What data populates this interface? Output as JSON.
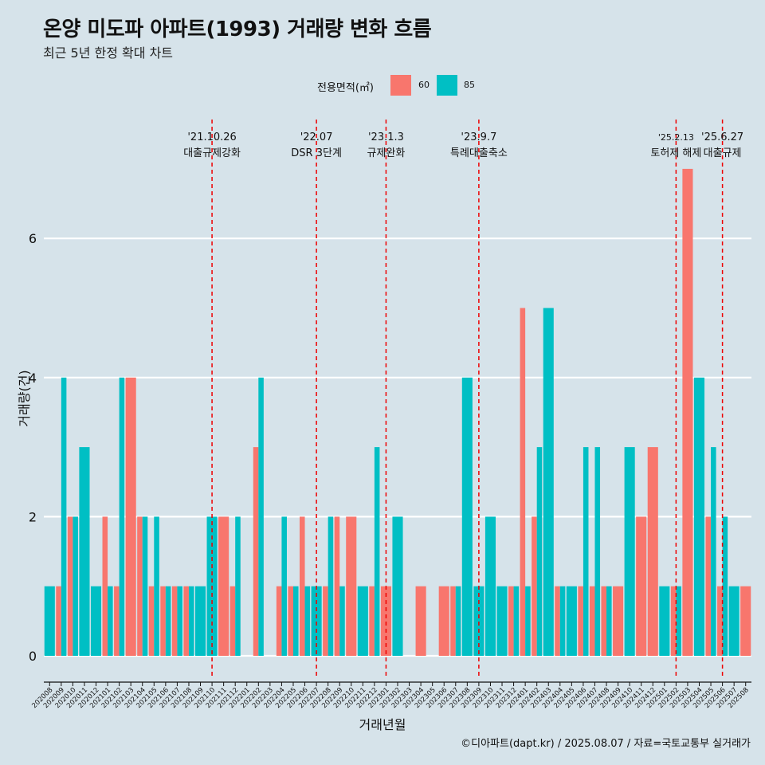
{
  "title": "온양 미도파 아파트(1993) 거래량 변화 흐름",
  "subtitle": "최근 5년 한정 확대 차트",
  "legend": {
    "title": "전용면적(㎡)",
    "items": [
      {
        "label": "60",
        "color": "#f8766d"
      },
      {
        "label": "85",
        "color": "#00bfc4"
      }
    ]
  },
  "caption": "©디아파트(dapt.kr) / 2025.08.07 / 자료=국토교통부 실거래가",
  "chart_data": {
    "type": "bar",
    "xlabel": "거래년월",
    "ylabel": "거래량(건)",
    "ylim": [
      0,
      7
    ],
    "y_ticks": [
      0,
      2,
      4,
      6
    ],
    "grid": true,
    "legend_position": "top",
    "categories": [
      "202008",
      "202009",
      "202010",
      "202011",
      "202012",
      "202101",
      "202102",
      "202103",
      "202104",
      "202105",
      "202106",
      "202107",
      "202108",
      "202109",
      "202110",
      "202111",
      "202112",
      "202201",
      "202202",
      "202203",
      "202204",
      "202205",
      "202206",
      "202207",
      "202208",
      "202209",
      "202210",
      "202211",
      "202212",
      "202301",
      "202302",
      "202303",
      "202304",
      "202305",
      "202306",
      "202307",
      "202308",
      "202309",
      "202310",
      "202311",
      "202312",
      "202401",
      "202402",
      "202403",
      "202404",
      "202405",
      "202406",
      "202407",
      "202408",
      "202409",
      "202410",
      "202411",
      "202412",
      "202501",
      "202502",
      "202503",
      "202504",
      "202505",
      "202506",
      "202507",
      "202508"
    ],
    "series": [
      {
        "name": "60",
        "color": "#f8766d",
        "values": [
          0,
          1,
          2,
          0,
          0,
          2,
          1,
          4,
          2,
          1,
          1,
          1,
          1,
          0,
          0,
          2,
          1,
          0,
          3,
          0,
          1,
          1,
          2,
          0,
          1,
          2,
          2,
          0,
          1,
          1,
          0,
          0,
          1,
          0,
          1,
          1,
          0,
          0,
          0,
          0,
          1,
          5,
          2,
          0,
          1,
          0,
          1,
          1,
          1,
          1,
          0,
          2,
          3,
          0,
          1,
          7,
          0,
          2,
          1,
          0,
          1
        ]
      },
      {
        "name": "85",
        "color": "#00bfc4",
        "values": [
          1,
          4,
          2,
          3,
          1,
          1,
          4,
          0,
          2,
          2,
          1,
          1,
          1,
          1,
          2,
          0,
          2,
          0,
          4,
          0,
          2,
          1,
          1,
          1,
          2,
          1,
          0,
          1,
          3,
          0,
          2,
          0,
          0,
          0,
          0,
          1,
          4,
          1,
          2,
          1,
          1,
          1,
          3,
          5,
          1,
          1,
          3,
          3,
          1,
          0,
          3,
          0,
          0,
          1,
          1,
          0,
          4,
          3,
          2,
          1,
          0
        ]
      }
    ],
    "events": [
      {
        "month": "202110",
        "date": "'21.10.26",
        "label": "대출규제강화"
      },
      {
        "month": "202207",
        "date": "'22.07",
        "label": "DSR 3단계"
      },
      {
        "month": "202301",
        "date": "'23.1.3",
        "label": "규제완화"
      },
      {
        "month": "202309",
        "date": "'23.9.7",
        "label": "특례대출축소"
      },
      {
        "month": "202502",
        "date": "'25.2.13",
        "label": "토허제 해제"
      },
      {
        "month": "202506",
        "date": "'25.6.27",
        "label": "대출규제"
      }
    ],
    "event_line_color": "#ee0000"
  }
}
